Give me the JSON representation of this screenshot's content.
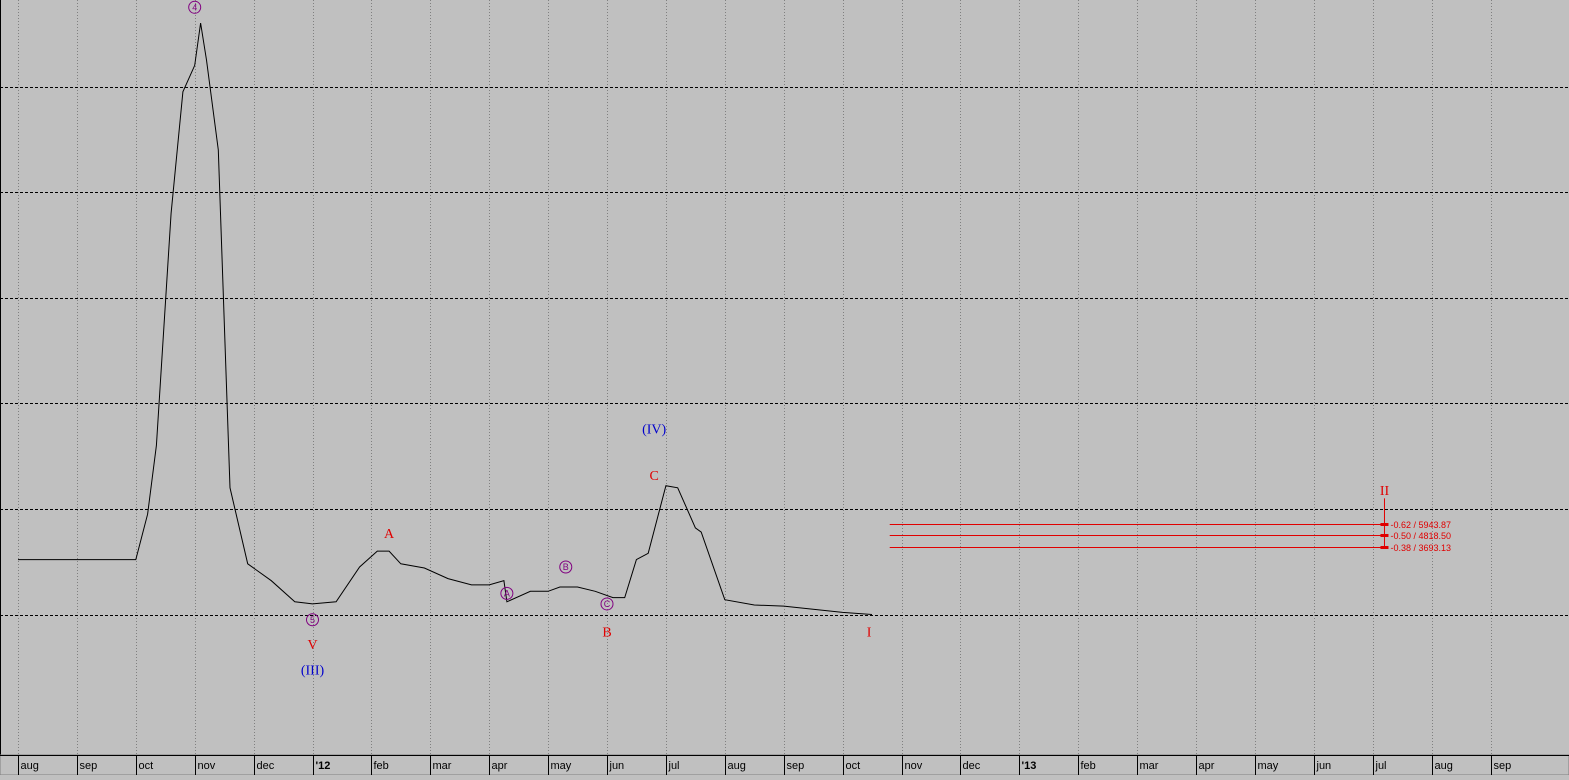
{
  "chart_data": {
    "type": "line",
    "grid": true,
    "months": [
      "aug",
      "sep",
      "oct",
      "nov",
      "dec",
      "'12",
      "feb",
      "mar",
      "apr",
      "may",
      "jun",
      "jul",
      "aug",
      "sep",
      "oct",
      "nov",
      "dec",
      "'13",
      "feb",
      "mar",
      "apr",
      "may",
      "jun",
      "jul",
      "aug",
      "sep"
    ],
    "series": [
      {
        "color": "#000000",
        "x": [
          0.0,
          2.0,
          2.2,
          2.35,
          2.6,
          2.8,
          3.0,
          3.1,
          3.2,
          3.4,
          3.6,
          3.9,
          4.3,
          4.7,
          5.0,
          5.4,
          5.8,
          6.1,
          6.3,
          6.5,
          6.9,
          7.3,
          7.7,
          8.0,
          8.25,
          8.3,
          8.7,
          9.0,
          9.2,
          9.5,
          9.8,
          10.1,
          10.3,
          10.5,
          10.7,
          11.0,
          11.2,
          11.5,
          11.6,
          12.0,
          12.5,
          13.0,
          13.5,
          14.0,
          14.5
        ],
        "y": [
          0.52,
          0.52,
          0.95,
          1.6,
          3.8,
          4.95,
          5.2,
          5.6,
          5.25,
          4.4,
          1.2,
          0.48,
          0.32,
          0.12,
          0.1,
          0.12,
          0.45,
          0.6,
          0.6,
          0.48,
          0.44,
          0.34,
          0.28,
          0.28,
          0.32,
          0.12,
          0.22,
          0.22,
          0.26,
          0.26,
          0.22,
          0.16,
          0.16,
          0.52,
          0.58,
          1.22,
          1.2,
          0.82,
          0.78,
          0.14,
          0.09,
          0.08,
          0.05,
          0.02,
          0.0
        ]
      }
    ],
    "y_grid_levels": [
      0,
      1,
      2,
      3,
      4,
      5,
      6
    ],
    "wave_labels": [
      {
        "text": "4",
        "x": 3.0,
        "y": 5.75,
        "color": "#800080",
        "circled": true
      },
      {
        "text": "5",
        "x": 5.0,
        "y": -0.05,
        "color": "#800080",
        "circled": true
      },
      {
        "text": "V",
        "x": 5.0,
        "y": -0.28,
        "color": "#e00000"
      },
      {
        "text": "(III)",
        "x": 5.0,
        "y": -0.52,
        "color": "#0000cc"
      },
      {
        "text": "A",
        "x": 6.3,
        "y": 0.77,
        "color": "#e00000"
      },
      {
        "text": "A",
        "x": 8.3,
        "y": 0.2,
        "color": "#800080",
        "circled": true
      },
      {
        "text": "B",
        "x": 9.3,
        "y": 0.45,
        "color": "#800080",
        "circled": true
      },
      {
        "text": "C",
        "x": 10.0,
        "y": 0.1,
        "color": "#800080",
        "circled": true
      },
      {
        "text": "B",
        "x": 10.0,
        "y": -0.16,
        "color": "#e00000"
      },
      {
        "text": "(IV)",
        "x": 10.8,
        "y": 1.76,
        "color": "#0000cc"
      },
      {
        "text": "C",
        "x": 10.8,
        "y": 1.32,
        "color": "#e00000"
      },
      {
        "text": "I",
        "x": 14.45,
        "y": -0.16,
        "color": "#e00000"
      },
      {
        "text": "II",
        "x": 23.2,
        "y": 1.18,
        "color": "#e00000"
      }
    ],
    "fib_levels": [
      {
        "label": "-0.62 / 5943.87",
        "y": 0.86
      },
      {
        "label": "-0.50 / 4818.50",
        "y": 0.75
      },
      {
        "label": "-0.38 / 3693.13",
        "y": 0.64
      }
    ],
    "fib_x_start": 14.8,
    "fib_x_end": 23.2
  }
}
